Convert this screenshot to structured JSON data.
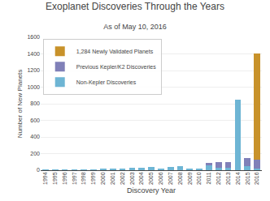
{
  "chart_data": {
    "type": "bar",
    "stacked": true,
    "title": "Exoplanet Discoveries Through the Years",
    "subtitle": "As of May 10, 2016",
    "x_label": "Discovery Year",
    "y_label": "Number of New Planets",
    "categories": [
      "1994",
      "1995",
      "1996",
      "1997",
      "1998",
      "1999",
      "2000",
      "2001",
      "2002",
      "2003",
      "2004",
      "2005",
      "2006",
      "2007",
      "2008",
      "2009",
      "2010",
      "2011",
      "2012",
      "2013",
      "2014",
      "2015",
      "2016"
    ],
    "series": [
      {
        "name": "Non-Kepler Discoveries",
        "color": "#6eb5d4",
        "values": [
          1,
          6,
          1,
          1,
          2,
          4,
          13,
          13,
          23,
          26,
          30,
          37,
          21,
          40,
          51,
          17,
          24,
          59,
          33,
          25,
          850,
          50,
          21
        ]
      },
      {
        "name": "Previous Kepler/K2 Discoveries",
        "color": "#8080b8",
        "values": [
          0,
          0,
          0,
          0,
          0,
          0,
          0,
          0,
          0,
          0,
          0,
          0,
          0,
          0,
          0,
          0,
          0,
          26,
          61,
          77,
          0,
          100,
          104
        ]
      },
      {
        "name": "1,284 Newly Validated Planets",
        "color": "#c8922a",
        "values": [
          0,
          0,
          0,
          0,
          0,
          0,
          0,
          0,
          0,
          0,
          0,
          0,
          0,
          0,
          0,
          0,
          0,
          0,
          0,
          0,
          0,
          0,
          1284
        ]
      }
    ],
    "ylim": [
      0,
      1600
    ],
    "yticks": [
      0,
      200,
      400,
      600,
      800,
      1000,
      1200,
      1400,
      1600
    ],
    "grid": true,
    "legend": "upper left"
  }
}
